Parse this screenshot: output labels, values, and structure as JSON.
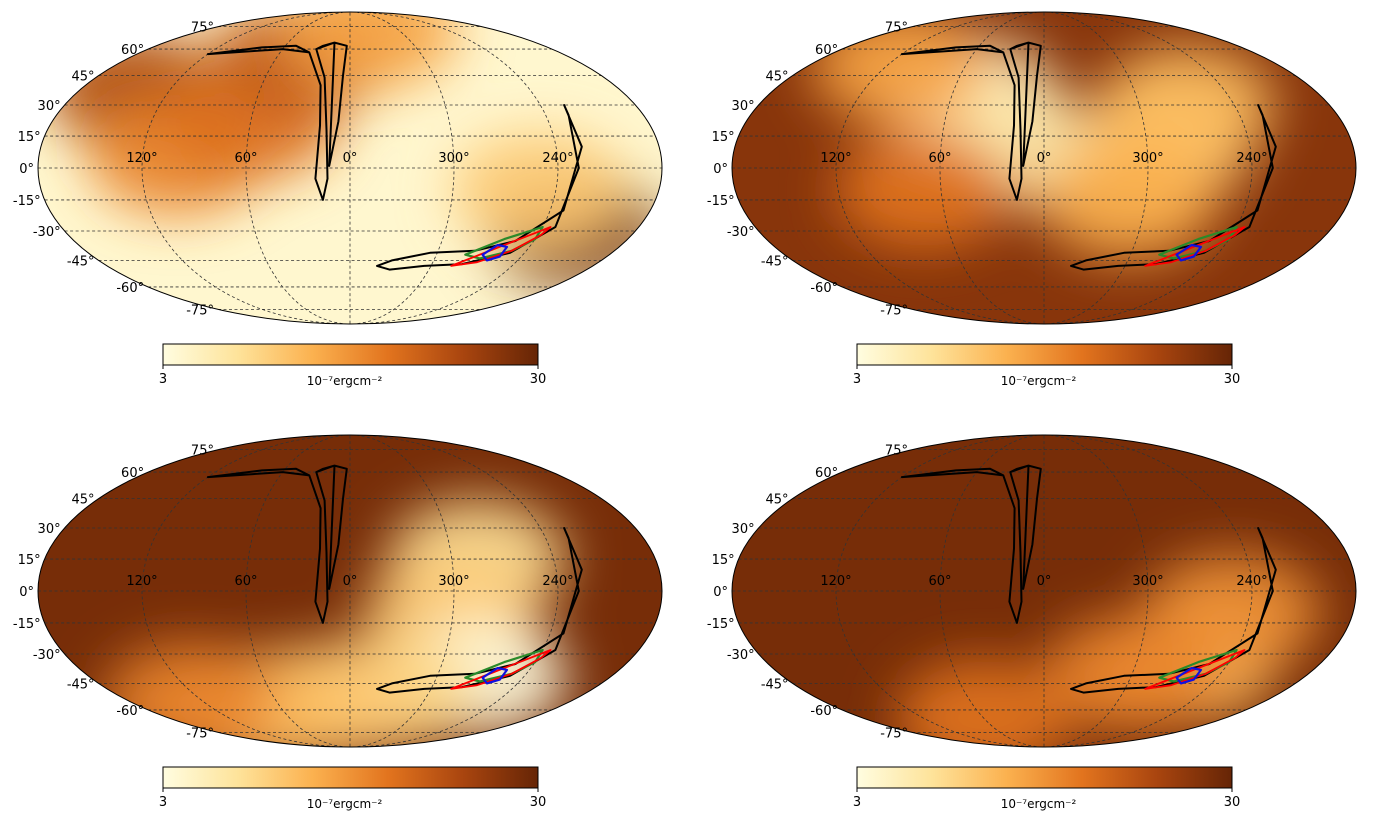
{
  "figure": {
    "type": "mollweide-skymap-grid",
    "colors": {
      "cmap_low": "#fffde0",
      "cmap_q1": "#fee39a",
      "cmap_q2": "#fbb14f",
      "cmap_q3": "#e2741e",
      "cmap_q4": "#a9450f",
      "cmap_high": "#662506",
      "contour_black": "#000000",
      "contour_red": "#ff0000",
      "contour_green": "#2a8a2a",
      "contour_blue": "#1010e0",
      "grid": "#333333"
    },
    "longitude_labels": [
      "120°",
      "60°",
      "0°",
      "300°",
      "240°"
    ],
    "latitude_labels": [
      "75°",
      "60°",
      "45°",
      "30°",
      "15°",
      "0°",
      "-15°",
      "-30°",
      "-45°",
      "-60°",
      "-75°"
    ],
    "colorbar": {
      "min_label": "3",
      "max_label": "30",
      "unit_label": "10⁻⁷ergcm⁻²",
      "min": 3,
      "max": 30
    }
  },
  "chart_data": [
    {
      "type": "heatmap",
      "projection": "mollweide",
      "panel": "top-left",
      "colorbar": {
        "min": 3,
        "max": 30,
        "label": "10⁻⁷ergcm⁻²"
      },
      "background_level": 0.05,
      "blobs": [
        {
          "lon": 145,
          "lat": 38,
          "level": 0.78
        },
        {
          "lon": 100,
          "lat": 5,
          "level": 0.55
        },
        {
          "lon": 60,
          "lat": 22,
          "level": 0.62
        },
        {
          "lon": 40,
          "lat": 55,
          "level": 0.72
        },
        {
          "lon": 335,
          "lat": 72,
          "level": 0.45
        },
        {
          "lon": 218,
          "lat": -30,
          "level": 0.95
        },
        {
          "lon": 250,
          "lat": -10,
          "level": 0.3
        }
      ]
    },
    {
      "type": "heatmap",
      "projection": "mollweide",
      "panel": "top-right",
      "colorbar": {
        "min": 3,
        "max": 30,
        "label": "10⁻⁷ergcm⁻²"
      },
      "background_level": 0.9,
      "blobs": [
        {
          "lon": 50,
          "lat": 35,
          "level": 0.08
        },
        {
          "lon": 15,
          "lat": 10,
          "level": 0.15
        },
        {
          "lon": 110,
          "lat": 50,
          "level": 0.45
        },
        {
          "lon": 290,
          "lat": 10,
          "level": 0.3
        },
        {
          "lon": 270,
          "lat": 30,
          "level": 0.35
        },
        {
          "lon": 310,
          "lat": -15,
          "level": 0.4
        },
        {
          "lon": 70,
          "lat": -10,
          "level": 0.6
        }
      ]
    },
    {
      "type": "heatmap",
      "projection": "mollweide",
      "panel": "bottom-left",
      "colorbar": {
        "min": 3,
        "max": 30,
        "label": "10⁻⁷ergcm⁻²"
      },
      "background_level": 0.95,
      "blobs": [
        {
          "lon": 285,
          "lat": 15,
          "level": 0.2
        },
        {
          "lon": 300,
          "lat": -10,
          "level": 0.3
        },
        {
          "lon": 270,
          "lat": -42,
          "level": 0.0
        },
        {
          "lon": 330,
          "lat": -50,
          "level": 0.25
        },
        {
          "lon": 20,
          "lat": -55,
          "level": 0.3
        },
        {
          "lon": 80,
          "lat": -60,
          "level": 0.35
        },
        {
          "lon": 130,
          "lat": -55,
          "level": 0.55
        }
      ]
    },
    {
      "type": "heatmap",
      "projection": "mollweide",
      "panel": "bottom-right",
      "colorbar": {
        "min": 3,
        "max": 30,
        "label": "10⁻⁷ergcm⁻²"
      },
      "background_level": 0.95,
      "blobs": [
        {
          "lon": 265,
          "lat": -35,
          "level": 0.35
        },
        {
          "lon": 250,
          "lat": -10,
          "level": 0.5
        },
        {
          "lon": 300,
          "lat": -40,
          "level": 0.55
        },
        {
          "lon": 60,
          "lat": -65,
          "level": 0.6
        }
      ]
    }
  ],
  "contours": {
    "black": [
      [
        [
          12,
          1
        ],
        [
          7,
          22
        ],
        [
          5,
          45
        ],
        [
          3,
          62
        ],
        [
          15,
          64
        ],
        [
          25,
          62
        ],
        [
          30,
          60
        ],
        [
          18,
          44
        ],
        [
          14,
          18
        ],
        [
          13,
          -5
        ],
        [
          16,
          -15
        ],
        [
          20,
          -5
        ],
        [
          18,
          20
        ],
        [
          20,
          40
        ],
        [
          35,
          58
        ],
        [
          50,
          62
        ],
        [
          80,
          61
        ],
        [
          120,
          57
        ],
        [
          60,
          60
        ],
        [
          35,
          58
        ],
        [
          20,
          40
        ],
        [
          18,
          20
        ],
        [
          20,
          -5
        ],
        [
          16,
          -15
        ],
        [
          13,
          -5
        ],
        [
          14,
          18
        ],
        [
          18,
          44
        ],
        [
          30,
          60
        ],
        [
          15,
          64
        ]
      ],
      [
        [
          225,
          30
        ],
        [
          225,
          10
        ],
        [
          232,
          -20
        ],
        [
          252,
          -35
        ],
        [
          275,
          -40
        ],
        [
          305,
          -41
        ],
        [
          330,
          -45
        ],
        [
          340,
          -48
        ],
        [
          330,
          -50
        ],
        [
          305,
          -48
        ],
        [
          278,
          -47
        ],
        [
          250,
          -41
        ],
        [
          232,
          -28
        ],
        [
          228,
          0
        ],
        [
          226,
          25
        ]
      ]
    ],
    "red": [
      [
        235,
        -28
      ],
      [
        260,
        -38
      ],
      [
        285,
        -48
      ],
      [
        268,
        -46
      ],
      [
        250,
        -40
      ],
      [
        238,
        -32
      ]
    ],
    "green": [
      [
        240,
        -28
      ],
      [
        260,
        -34
      ],
      [
        280,
        -42
      ],
      [
        268,
        -44
      ],
      [
        250,
        -40
      ],
      [
        240,
        -34
      ]
    ],
    "blue": [
      [
        255,
        -38
      ],
      [
        262,
        -37
      ],
      [
        268,
        -42
      ],
      [
        262,
        -45
      ],
      [
        255,
        -43
      ]
    ]
  }
}
